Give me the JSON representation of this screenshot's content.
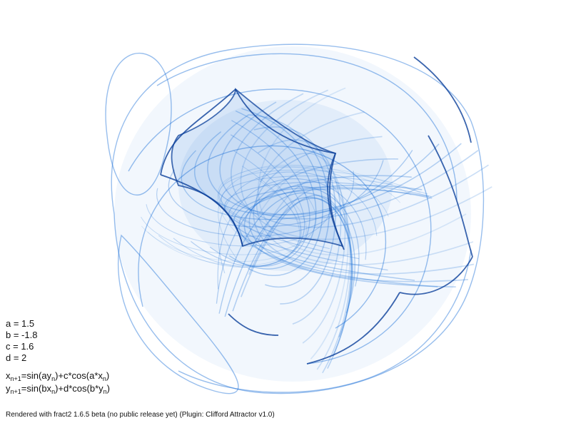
{
  "colors": {
    "background": "#ffffff",
    "stroke": "#1a6fd6",
    "dark": "#0a3f9a",
    "text": "#111111"
  },
  "params": {
    "a": "a = 1.5",
    "b": "b = -1.8",
    "c": "c = 1.6",
    "d": "d = 2"
  },
  "formulas": {
    "x": {
      "var": "x",
      "sub1": "n+1",
      "eq": "=sin(ay",
      "sub2": "n",
      "mid": ")+c*cos(a*x",
      "sub3": "n",
      "end": ")"
    },
    "y": {
      "var": "y",
      "sub1": "n+1",
      "eq": "=sin(bx",
      "sub2": "n",
      "mid": ")+d*cos(b*y",
      "sub3": "n",
      "end": ")"
    }
  },
  "footer": "Rendered with fract2 1.6.5 beta (no public release yet) (Plugin: Clifford Attractor v1.0)"
}
